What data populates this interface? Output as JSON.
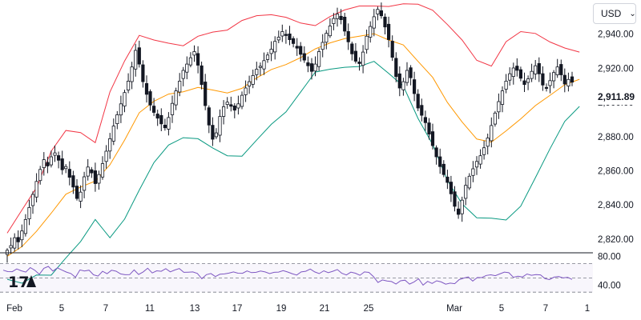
{
  "currency_selector": {
    "label": "USD",
    "chevron_icon": "chevron-down-icon"
  },
  "last_price_label": "2,911.89",
  "logo_text": "17",
  "colors": {
    "upper_band": "#f23645",
    "middle_band": "#ff9800",
    "lower_band": "#089981",
    "rsi_line": "#7e57c2",
    "candles": "#131722"
  },
  "chart_data": [
    {
      "type": "candlestick",
      "price_axis": {
        "ylim": [
          2812,
          2960
        ],
        "ticks": [
          "2,820.00",
          "2,840.00",
          "2,860.00",
          "2,880.00",
          "2,900.00",
          "2,920.00",
          "2,940.00"
        ]
      },
      "time_axis": {
        "labels": [
          "Feb",
          "5",
          "7",
          "11",
          "13",
          "17",
          "19",
          "21",
          "25",
          "Mar",
          "5",
          "7",
          "1"
        ]
      },
      "indicators": [
        "Bollinger upper band",
        "Bollinger middle band",
        "Bollinger lower band"
      ],
      "close_series": [
        2813.5,
        2816.2,
        2820.8,
        2818.4,
        2824.8,
        2831.5,
        2838.5,
        2846.2,
        2853.8,
        2860.8,
        2866.5,
        2862.8,
        2868.2,
        2870.5,
        2866.2,
        2860.6,
        2862.5,
        2856.2,
        2850.5,
        2843.8,
        2847.5,
        2856.5,
        2862.2,
        2858.8,
        2852.5,
        2857.8,
        2864.2,
        2871.5,
        2878.8,
        2886.2,
        2892.8,
        2899.2,
        2905.8,
        2912.5,
        2920.8,
        2930.5,
        2922.5,
        2912.2,
        2904.8,
        2898.5,
        2894.2,
        2890.8,
        2887.5,
        2885.2,
        2891.2,
        2899.5,
        2906.8,
        2912.5,
        2918.8,
        2922.5,
        2926.2,
        2929.8,
        2921.8,
        2910.5,
        2898.2,
        2886.8,
        2878.5,
        2882.2,
        2891.8,
        2897.5,
        2900.2,
        2897.8,
        2895.5,
        2899.2,
        2904.2,
        2908.5,
        2912.2,
        2915.8,
        2919.5,
        2921.2,
        2924.5,
        2927.8,
        2931.2,
        2935.8,
        2938.2,
        2941.5,
        2939.2,
        2936.8,
        2934.5,
        2931.8,
        2928.2,
        2924.8,
        2921.5,
        2918.2,
        2922.5,
        2929.8,
        2935.2,
        2940.5,
        2944.8,
        2949.2,
        2951.8,
        2948.5,
        2941.8,
        2935.5,
        2928.5,
        2924.2,
        2922.8,
        2929.5,
        2938.8,
        2944.5,
        2950.2,
        2954.5,
        2950.8,
        2944.2,
        2936.8,
        2926.5,
        2915.2,
        2908.5,
        2912.2,
        2918.8,
        2914.5,
        2905.2,
        2896.8,
        2892.5,
        2888.2,
        2881.5,
        2874.8,
        2868.2,
        2862.5,
        2857.8,
        2853.2,
        2846.5,
        2839.2,
        2834.5,
        2842.8,
        2851.5,
        2856.8,
        2861.2,
        2865.5,
        2868.8,
        2873.5,
        2879.2,
        2886.5,
        2893.8,
        2900.5,
        2906.8,
        2912.5,
        2916.8,
        2920.2,
        2918.8,
        2914.2,
        2910.5,
        2913.8,
        2918.2,
        2921.5,
        2916.8,
        2910.2,
        2908.5,
        2912.8,
        2917.5,
        2920.8,
        2916.2,
        2910.8,
        2913.5,
        2911.89
      ],
      "upper_band_path": [
        [
          0,
          2823.5
        ],
        [
          4,
          2837.0
        ],
        [
          8,
          2850.2
        ],
        [
          12,
          2871.5
        ],
        [
          16,
          2883.6
        ],
        [
          20,
          2882.4
        ],
        [
          24,
          2876.5
        ],
        [
          28,
          2906.2
        ],
        [
          32,
          2924.3
        ],
        [
          36,
          2939.3
        ],
        [
          40,
          2936.6
        ],
        [
          44,
          2934.7
        ],
        [
          48,
          2933.2
        ],
        [
          52,
          2938.8
        ],
        [
          56,
          2941.2
        ],
        [
          60,
          2942.4
        ],
        [
          64,
          2948.0
        ],
        [
          68,
          2950.8
        ],
        [
          72,
          2951.4
        ],
        [
          76,
          2949.9
        ],
        [
          80,
          2946.5
        ],
        [
          84,
          2945.0
        ],
        [
          88,
          2950.3
        ],
        [
          92,
          2954.2
        ],
        [
          96,
          2956.5
        ],
        [
          100,
          2956.5
        ],
        [
          104,
          2956.2
        ],
        [
          108,
          2957.8
        ],
        [
          112,
          2957.5
        ],
        [
          116,
          2954.0
        ],
        [
          120,
          2945.6
        ],
        [
          124,
          2936.6
        ],
        [
          128,
          2924.7
        ],
        [
          132,
          2921.3
        ],
        [
          136,
          2935.6
        ],
        [
          140,
          2941.5
        ],
        [
          144,
          2940.4
        ],
        [
          148,
          2935.4
        ],
        [
          152,
          2931.9
        ],
        [
          156,
          2929.5
        ]
      ],
      "middle_band_path": [
        [
          0,
          2810.0
        ],
        [
          4,
          2815.6
        ],
        [
          8,
          2824.6
        ],
        [
          12,
          2835.2
        ],
        [
          16,
          2846.3
        ],
        [
          20,
          2850.5
        ],
        [
          24,
          2854.0
        ],
        [
          28,
          2863.5
        ],
        [
          32,
          2878.0
        ],
        [
          36,
          2894.0
        ],
        [
          40,
          2900.7
        ],
        [
          44,
          2904.9
        ],
        [
          48,
          2906.3
        ],
        [
          52,
          2908.8
        ],
        [
          56,
          2907.3
        ],
        [
          60,
          2905.6
        ],
        [
          64,
          2908.3
        ],
        [
          68,
          2914.4
        ],
        [
          72,
          2919.3
        ],
        [
          76,
          2922.2
        ],
        [
          80,
          2926.3
        ],
        [
          84,
          2931.4
        ],
        [
          88,
          2934.9
        ],
        [
          92,
          2937.4
        ],
        [
          96,
          2938.8
        ],
        [
          100,
          2940.3
        ],
        [
          104,
          2936.6
        ],
        [
          108,
          2933.7
        ],
        [
          112,
          2924.1
        ],
        [
          116,
          2914.7
        ],
        [
          120,
          2900.0
        ],
        [
          124,
          2888.6
        ],
        [
          128,
          2878.6
        ],
        [
          132,
          2876.8
        ],
        [
          136,
          2883.4
        ],
        [
          140,
          2890.4
        ],
        [
          144,
          2898.2
        ],
        [
          148,
          2904.2
        ],
        [
          152,
          2910.4
        ],
        [
          156,
          2913.6
        ]
      ],
      "lower_band_path": [
        [
          0,
          2796.5
        ],
        [
          4,
          2794.2
        ],
        [
          8,
          2799.0
        ],
        [
          12,
          2798.9
        ],
        [
          16,
          2809.0
        ],
        [
          20,
          2818.6
        ],
        [
          24,
          2831.5
        ],
        [
          28,
          2820.8
        ],
        [
          32,
          2831.7
        ],
        [
          36,
          2848.7
        ],
        [
          40,
          2864.8
        ],
        [
          44,
          2875.1
        ],
        [
          48,
          2879.4
        ],
        [
          52,
          2878.8
        ],
        [
          56,
          2873.4
        ],
        [
          60,
          2868.8
        ],
        [
          64,
          2868.6
        ],
        [
          68,
          2878.0
        ],
        [
          72,
          2887.2
        ],
        [
          76,
          2894.5
        ],
        [
          80,
          2906.1
        ],
        [
          84,
          2917.8
        ],
        [
          88,
          2919.5
        ],
        [
          92,
          2920.6
        ],
        [
          96,
          2921.1
        ],
        [
          100,
          2924.1
        ],
        [
          104,
          2917.0
        ],
        [
          108,
          2909.6
        ],
        [
          112,
          2890.7
        ],
        [
          116,
          2875.4
        ],
        [
          120,
          2854.4
        ],
        [
          124,
          2840.6
        ],
        [
          128,
          2832.5
        ],
        [
          132,
          2832.3
        ],
        [
          136,
          2831.2
        ],
        [
          140,
          2839.3
        ],
        [
          144,
          2856.0
        ],
        [
          148,
          2873.0
        ],
        [
          152,
          2888.9
        ],
        [
          156,
          2897.7
        ]
      ]
    },
    {
      "type": "line",
      "name": "RSI pane",
      "ylim": [
        28,
        84
      ],
      "y_ticks": [
        "80.00",
        "40.00"
      ],
      "reference_levels": [
        70,
        50,
        30
      ],
      "values": [
        60.8,
        58.8,
        58.7,
        62.5,
        59.9,
        58.1,
        64.4,
        60.7,
        55.0,
        63.4,
        66.1,
        59.6,
        64.1,
        60.9,
        58.1,
        56.1,
        50.8,
        61.1,
        59.7,
        60.8,
        54.3,
        52.5,
        59.3,
        55.9,
        60.7,
        59.4,
        55.6,
        54.4,
        54.5,
        61.1,
        54.8,
        58.4,
        63.5,
        56.9,
        59.9,
        59.2,
        62.9,
        58.5,
        61.0,
        63.1,
        57.8,
        58.0,
        58.3,
        56.2,
        48.8,
        54.6,
        56.1,
        51.9,
        55.1,
        55.5,
        56.7,
        58.3,
        56.6,
        56.5,
        59.7,
        57.3,
        57.8,
        59.6,
        58.3,
        56.0,
        57.8,
        58.1,
        60.1,
        58.2,
        55.9,
        54.0,
        58.4,
        59.3,
        62.4,
        58.4,
        56.0,
        59.9,
        57.3,
        59.2,
        61.7,
        56.4,
        54.1,
        58.0,
        56.6,
        53.6,
        58.3,
        57.7,
        51.9,
        43.6,
        47.1,
        45.7,
        44.9,
        41.4,
        45.9,
        46.8,
        41.3,
        44.3,
        48.8,
        39.9,
        45.1,
        42.2,
        45.9,
        44.3,
        41.2,
        42.7,
        41.9,
        47.6,
        49.7,
        51.3,
        45.5,
        50.5,
        50.4,
        53.4,
        54.3,
        53.1,
        55.5,
        58.1,
        57.2,
        50.8,
        52.3,
        51.2,
        55.4,
        53.6,
        54.5,
        54.2,
        49.0,
        47.6,
        51.1,
        52.0,
        50.0,
        50.8,
        47.8
      ]
    }
  ]
}
